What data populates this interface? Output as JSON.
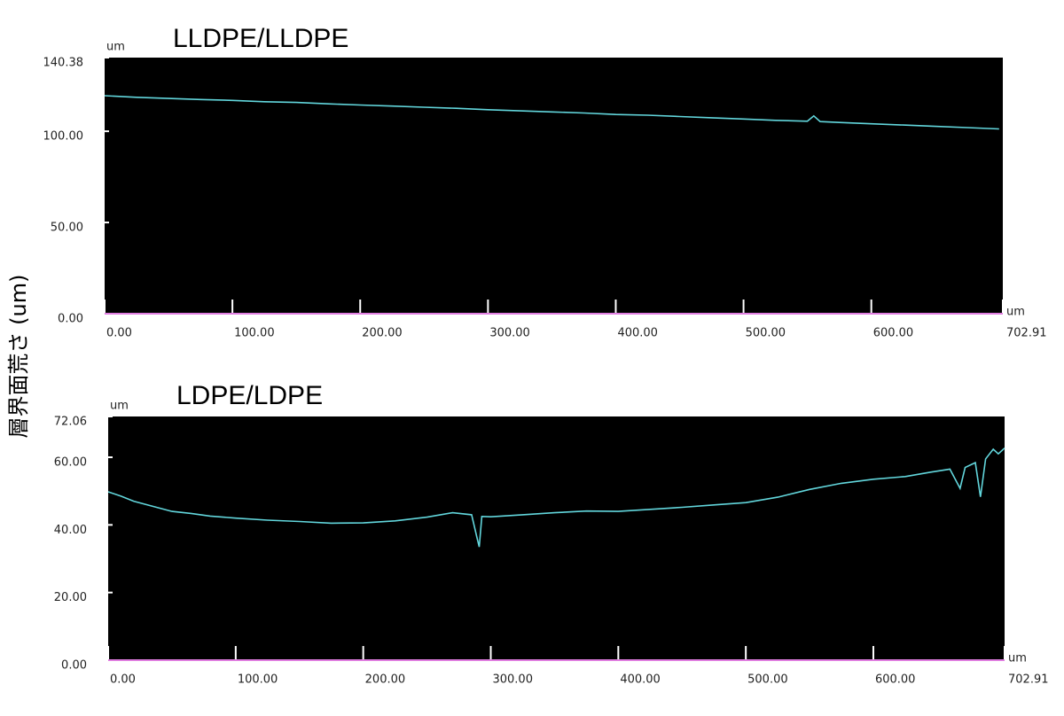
{
  "ylabel": "層界面荒さ (um)",
  "chart_data": [
    {
      "type": "line",
      "title": "LLDPE/LLDPE",
      "y_unit": "um",
      "x_unit": "um",
      "color": "#62d6dc",
      "x": [
        0,
        25,
        50,
        75,
        100,
        125,
        150,
        175,
        200,
        225,
        250,
        275,
        300,
        325,
        350,
        375,
        400,
        425,
        450,
        475,
        500,
        525,
        550,
        555,
        560,
        575,
        600,
        625,
        650,
        675,
        700
      ],
      "values": [
        119.5,
        118.6,
        118.0,
        117.4,
        116.9,
        116.2,
        115.8,
        115.0,
        114.4,
        113.8,
        113.2,
        112.6,
        111.8,
        111.2,
        110.6,
        110.0,
        109.2,
        108.8,
        108.1,
        107.4,
        106.7,
        106.0,
        105.5,
        108.4,
        105.3,
        104.8,
        104.1,
        103.4,
        102.7,
        102.0,
        101.3
      ],
      "xlim": [
        0,
        702.91
      ],
      "ylim": [
        0,
        140.38
      ],
      "xticks": [
        {
          "value": 0,
          "label": "0.00"
        },
        {
          "value": 100,
          "label": "100.00"
        },
        {
          "value": 200,
          "label": "200.00"
        },
        {
          "value": 300,
          "label": "300.00"
        },
        {
          "value": 400,
          "label": "400.00"
        },
        {
          "value": 500,
          "label": "500.00"
        },
        {
          "value": 600,
          "label": "600.00"
        },
        {
          "value": 702.91,
          "label": "702.91"
        }
      ],
      "yticks": [
        {
          "value": 0,
          "label": "0.00"
        },
        {
          "value": 50,
          "label": "50.00"
        },
        {
          "value": 100,
          "label": "100.00"
        },
        {
          "value": 140.38,
          "label": "140.38"
        }
      ]
    },
    {
      "type": "line",
      "title": "LDPE/LDPE",
      "y_unit": "um",
      "x_unit": "um",
      "color": "#62d6dc",
      "x": [
        0,
        10,
        20,
        35,
        50,
        65,
        80,
        100,
        125,
        150,
        175,
        200,
        225,
        250,
        270,
        285,
        289,
        291,
        293,
        300,
        325,
        350,
        375,
        400,
        425,
        450,
        475,
        500,
        525,
        550,
        575,
        600,
        625,
        645,
        660,
        668,
        672,
        680,
        684,
        688,
        694,
        698,
        702.91
      ],
      "values": [
        49.8,
        48.5,
        47.0,
        45.5,
        44.0,
        43.4,
        42.6,
        42.0,
        41.4,
        41.0,
        40.5,
        40.6,
        41.2,
        42.3,
        43.6,
        43.0,
        36.5,
        33.5,
        42.5,
        42.4,
        43.0,
        43.6,
        44.1,
        44.0,
        44.6,
        45.2,
        45.9,
        46.6,
        48.2,
        50.5,
        52.3,
        53.5,
        54.3,
        55.6,
        56.5,
        50.8,
        57.0,
        58.4,
        48.3,
        59.5,
        62.4,
        61.0,
        62.7
      ],
      "xlim": [
        0,
        702.91
      ],
      "ylim": [
        0,
        72.06
      ],
      "xticks": [
        {
          "value": 0,
          "label": "0.00"
        },
        {
          "value": 100,
          "label": "100.00"
        },
        {
          "value": 200,
          "label": "200.00"
        },
        {
          "value": 300,
          "label": "300.00"
        },
        {
          "value": 400,
          "label": "400.00"
        },
        {
          "value": 500,
          "label": "500.00"
        },
        {
          "value": 600,
          "label": "600.00"
        },
        {
          "value": 702.91,
          "label": "702.91"
        }
      ],
      "yticks": [
        {
          "value": 0,
          "label": "0.00"
        },
        {
          "value": 20,
          "label": "20.00"
        },
        {
          "value": 40,
          "label": "40.00"
        },
        {
          "value": 60,
          "label": "60.00"
        },
        {
          "value": 72.06,
          "label": "72.06"
        }
      ]
    }
  ]
}
